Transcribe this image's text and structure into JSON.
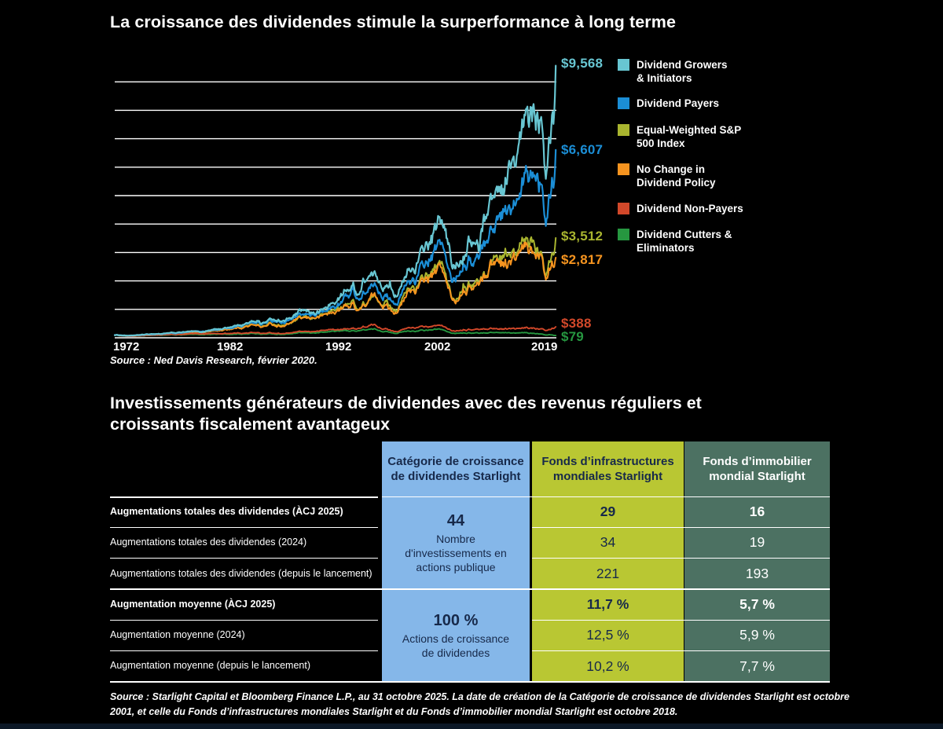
{
  "chart_data": {
    "type": "line",
    "title": "La croissance des dividendes stimule la surperformance à long terme",
    "source": "Source : Ned Davis Research, février 2020.",
    "x_range": [
      1972,
      2020.15
    ],
    "y_range": [
      0,
      9600
    ],
    "y_gridline_step": 1000,
    "grid": true,
    "legend_position": "right",
    "x_tick_labels": [
      "1972",
      "1982",
      "1992",
      "2002",
      "2019"
    ],
    "series": [
      {
        "name": "Dividend Growers & Initiators",
        "legend_lines": [
          "Dividend Growers",
          "& Initiators"
        ],
        "color": "#68c6d2",
        "end_label": "$9,568",
        "end_value": 9568,
        "anchors": [
          [
            1972,
            100
          ],
          [
            1973.8,
            75
          ],
          [
            1976,
            135
          ],
          [
            1978,
            150
          ],
          [
            1980,
            210
          ],
          [
            1981.5,
            200
          ],
          [
            1983,
            300
          ],
          [
            1985,
            420
          ],
          [
            1987.7,
            600
          ],
          [
            1987.95,
            480
          ],
          [
            1989,
            640
          ],
          [
            1990.5,
            590
          ],
          [
            1992,
            820
          ],
          [
            1993,
            900
          ],
          [
            1994,
            880
          ],
          [
            1996,
            1250
          ],
          [
            1997,
            1600
          ],
          [
            1998,
            1850
          ],
          [
            1998.6,
            1600
          ],
          [
            1999,
            1900
          ],
          [
            2000.2,
            2100
          ],
          [
            2001,
            2050
          ],
          [
            2001.7,
            1750
          ],
          [
            2002,
            1900
          ],
          [
            2002.7,
            1550
          ],
          [
            2004,
            2300
          ],
          [
            2005,
            2600
          ],
          [
            2006,
            3000
          ],
          [
            2007.7,
            4200
          ],
          [
            2008.2,
            3500
          ],
          [
            2008.8,
            2400
          ],
          [
            2009.2,
            2550
          ],
          [
            2010,
            3300
          ],
          [
            2011,
            3700
          ],
          [
            2011.7,
            3300
          ],
          [
            2012,
            3800
          ],
          [
            2013,
            4700
          ],
          [
            2014,
            5400
          ],
          [
            2015,
            5900
          ],
          [
            2015.7,
            5500
          ],
          [
            2016,
            6100
          ],
          [
            2017,
            7300
          ],
          [
            2018.7,
            8500
          ],
          [
            2018.95,
            6900
          ],
          [
            2019.5,
            8600
          ],
          [
            2020.15,
            9568
          ]
        ]
      },
      {
        "name": "Dividend Payers",
        "legend_lines": [
          "Dividend Payers"
        ],
        "color": "#1b8ed6",
        "end_label": "$6,607",
        "end_value": 6607,
        "anchors": [
          [
            1972,
            100
          ],
          [
            1973.8,
            72
          ],
          [
            1976,
            128
          ],
          [
            1978,
            142
          ],
          [
            1980,
            195
          ],
          [
            1983,
            280
          ],
          [
            1985,
            390
          ],
          [
            1987.7,
            560
          ],
          [
            1987.95,
            440
          ],
          [
            1989,
            590
          ],
          [
            1990.5,
            540
          ],
          [
            1992,
            760
          ],
          [
            1994,
            800
          ],
          [
            1996,
            1130
          ],
          [
            1998,
            1650
          ],
          [
            1998.6,
            1400
          ],
          [
            2000.2,
            1800
          ],
          [
            2001.7,
            1500
          ],
          [
            2002.7,
            1280
          ],
          [
            2004,
            1950
          ],
          [
            2006,
            2500
          ],
          [
            2007.7,
            3400
          ],
          [
            2008.8,
            2000
          ],
          [
            2009.2,
            2100
          ],
          [
            2010,
            2700
          ],
          [
            2011.7,
            2800
          ],
          [
            2013,
            3800
          ],
          [
            2014,
            4300
          ],
          [
            2015,
            4600
          ],
          [
            2016,
            4800
          ],
          [
            2017,
            5600
          ],
          [
            2018.7,
            6300
          ],
          [
            2018.95,
            5100
          ],
          [
            2019.5,
            6100
          ],
          [
            2020.15,
            6607
          ]
        ]
      },
      {
        "name": "Equal-Weighted S&P 500 Index",
        "legend_lines": [
          "Equal-Weighted S&P",
          "500 Index"
        ],
        "color": "#a9b52f",
        "end_label": "$3,512",
        "end_value": 3512,
        "anchors": [
          [
            1972,
            100
          ],
          [
            1973.8,
            62
          ],
          [
            1976,
            118
          ],
          [
            1980,
            175
          ],
          [
            1983,
            250
          ],
          [
            1985,
            345
          ],
          [
            1987.7,
            500
          ],
          [
            1987.95,
            380
          ],
          [
            1989,
            500
          ],
          [
            1990.5,
            440
          ],
          [
            1992,
            650
          ],
          [
            1994,
            700
          ],
          [
            1996,
            950
          ],
          [
            1998,
            1280
          ],
          [
            1998.6,
            1080
          ],
          [
            2000.2,
            1400
          ],
          [
            2001.7,
            1250
          ],
          [
            2002.7,
            1020
          ],
          [
            2004,
            1600
          ],
          [
            2006,
            2050
          ],
          [
            2007.7,
            2500
          ],
          [
            2008.8,
            1400
          ],
          [
            2009.2,
            1350
          ],
          [
            2010,
            1950
          ],
          [
            2011.7,
            1950
          ],
          [
            2013,
            2600
          ],
          [
            2014,
            2900
          ],
          [
            2015,
            2850
          ],
          [
            2016,
            2950
          ],
          [
            2017,
            3250
          ],
          [
            2018.7,
            3400
          ],
          [
            2018.95,
            2800
          ],
          [
            2019.5,
            3300
          ],
          [
            2020.15,
            3512
          ]
        ]
      },
      {
        "name": "No Change in Dividend Policy",
        "legend_lines": [
          "No Change in",
          "Dividend Policy"
        ],
        "color": "#f6941f",
        "end_label": "$2,817",
        "end_value": 2817,
        "anchors": [
          [
            1972,
            100
          ],
          [
            1973.8,
            58
          ],
          [
            1976,
            112
          ],
          [
            1980,
            168
          ],
          [
            1983,
            240
          ],
          [
            1985,
            330
          ],
          [
            1987.7,
            480
          ],
          [
            1987.95,
            360
          ],
          [
            1989,
            480
          ],
          [
            1990.5,
            420
          ],
          [
            1992,
            640
          ],
          [
            1994,
            680
          ],
          [
            1996,
            930
          ],
          [
            1998,
            1220
          ],
          [
            1998.6,
            1020
          ],
          [
            2000.2,
            1380
          ],
          [
            2001.7,
            1150
          ],
          [
            2002.7,
            950
          ],
          [
            2004,
            1550
          ],
          [
            2006,
            1980
          ],
          [
            2007.7,
            2450
          ],
          [
            2008.8,
            1300
          ],
          [
            2009.2,
            1280
          ],
          [
            2010,
            1900
          ],
          [
            2011.7,
            1850
          ],
          [
            2013,
            2500
          ],
          [
            2014,
            2750
          ],
          [
            2015,
            2700
          ],
          [
            2016,
            2750
          ],
          [
            2017,
            3050
          ],
          [
            2018.7,
            3100
          ],
          [
            2018.95,
            2450
          ],
          [
            2019.5,
            2950
          ],
          [
            2020.15,
            2817
          ]
        ]
      },
      {
        "name": "Dividend Non-Payers",
        "legend_lines": [
          "Dividend Non-Payers"
        ],
        "color": "#d2482a",
        "end_label": "$388",
        "end_value": 388,
        "anchors": [
          [
            1972,
            100
          ],
          [
            1973.8,
            52
          ],
          [
            1976,
            95
          ],
          [
            1980,
            130
          ],
          [
            1983,
            150
          ],
          [
            1985,
            160
          ],
          [
            1987.7,
            185
          ],
          [
            1987.95,
            150
          ],
          [
            1989,
            170
          ],
          [
            1990.5,
            150
          ],
          [
            1992,
            210
          ],
          [
            1994,
            230
          ],
          [
            1996,
            300
          ],
          [
            1998,
            330
          ],
          [
            2000.2,
            420
          ],
          [
            2001.7,
            300
          ],
          [
            2002.7,
            240
          ],
          [
            2004,
            330
          ],
          [
            2006,
            370
          ],
          [
            2007.7,
            420
          ],
          [
            2008.8,
            240
          ],
          [
            2009.2,
            250
          ],
          [
            2010,
            310
          ],
          [
            2011.7,
            290
          ],
          [
            2013,
            320
          ],
          [
            2014,
            330
          ],
          [
            2015,
            320
          ],
          [
            2016,
            300
          ],
          [
            2017,
            330
          ],
          [
            2018.7,
            360
          ],
          [
            2018.95,
            320
          ],
          [
            2019.5,
            370
          ],
          [
            2020.15,
            388
          ]
        ]
      },
      {
        "name": "Dividend Cutters & Eliminators",
        "legend_lines": [
          "Dividend Cutters &",
          "Eliminators"
        ],
        "color": "#269740",
        "end_label": "$79",
        "end_value": 79,
        "anchors": [
          [
            1972,
            100
          ],
          [
            1973.8,
            48
          ],
          [
            1976,
            85
          ],
          [
            1980,
            110
          ],
          [
            1983,
            125
          ],
          [
            1985,
            135
          ],
          [
            1987.7,
            150
          ],
          [
            1987.95,
            120
          ],
          [
            1989,
            140
          ],
          [
            1990.5,
            120
          ],
          [
            1992,
            170
          ],
          [
            1994,
            185
          ],
          [
            1996,
            230
          ],
          [
            1998,
            250
          ],
          [
            2000.2,
            300
          ],
          [
            2001.7,
            220
          ],
          [
            2002.7,
            170
          ],
          [
            2004,
            230
          ],
          [
            2006,
            260
          ],
          [
            2007.7,
            290
          ],
          [
            2008.8,
            150
          ],
          [
            2009.2,
            155
          ],
          [
            2010,
            190
          ],
          [
            2011.7,
            170
          ],
          [
            2013,
            185
          ],
          [
            2014,
            190
          ],
          [
            2015,
            175
          ],
          [
            2016,
            160
          ],
          [
            2017,
            160
          ],
          [
            2018.7,
            150
          ],
          [
            2018.95,
            120
          ],
          [
            2019.5,
            130
          ],
          [
            2020.15,
            79
          ]
        ]
      }
    ]
  },
  "section2": {
    "title_lines": [
      "Investissements générateurs de dividendes avec des revenus réguliers et",
      "croissants fiscalement avantageux"
    ],
    "table": {
      "columns": [
        {
          "label": "Catégorie de croissance de dividendes Starlight",
          "bg": "#85b7e9",
          "text": "#17294a"
        },
        {
          "label": "Fonds d’infrastructures mondiales Starlight",
          "bg": "#b9c733",
          "text": "#17294a"
        },
        {
          "label": "Fonds d’immobilier mondial Starlight",
          "bg": "#4c7162",
          "text": "#ffffff"
        }
      ],
      "rows": [
        {
          "label": "Augmentations totales des dividendes (ÀCJ 2025)",
          "bold": true,
          "infra": "29",
          "immo": "16"
        },
        {
          "label": "Augmentations totales des dividendes (2024)",
          "bold": false,
          "infra": "34",
          "immo": "19"
        },
        {
          "label": "Augmentations totales des dividendes (depuis le lancement)",
          "bold": false,
          "infra": "221",
          "immo": "193"
        },
        {
          "label": "Augmentation moyenne (ÀCJ 2025)",
          "bold": true,
          "infra": "11,7 %",
          "immo": "5,7 %"
        },
        {
          "label": "Augmentation moyenne (2024)",
          "bold": false,
          "infra": "12,5 %",
          "immo": "5,9 %"
        },
        {
          "label": "Augmentation moyenne (depuis le lancement)",
          "bold": false,
          "infra": "10,2 %",
          "immo": "7,7 %"
        }
      ],
      "category_cells": [
        {
          "big": "44",
          "sub": "Nombre d'investissements en actions publique"
        },
        {
          "big": "100 %",
          "sub": "Actions de croissance de dividendes"
        }
      ]
    },
    "source_lines": [
      "Source : Starlight Capital et Bloomberg Finance L.P., au 31 octobre 2025. La date de création de la Catégorie de croissance de dividendes Starlight est octobre",
      "2001, et celle du Fonds d’infrastructures mondiales Starlight et du Fonds d’immobilier mondial Starlight est octobre 2018."
    ]
  }
}
